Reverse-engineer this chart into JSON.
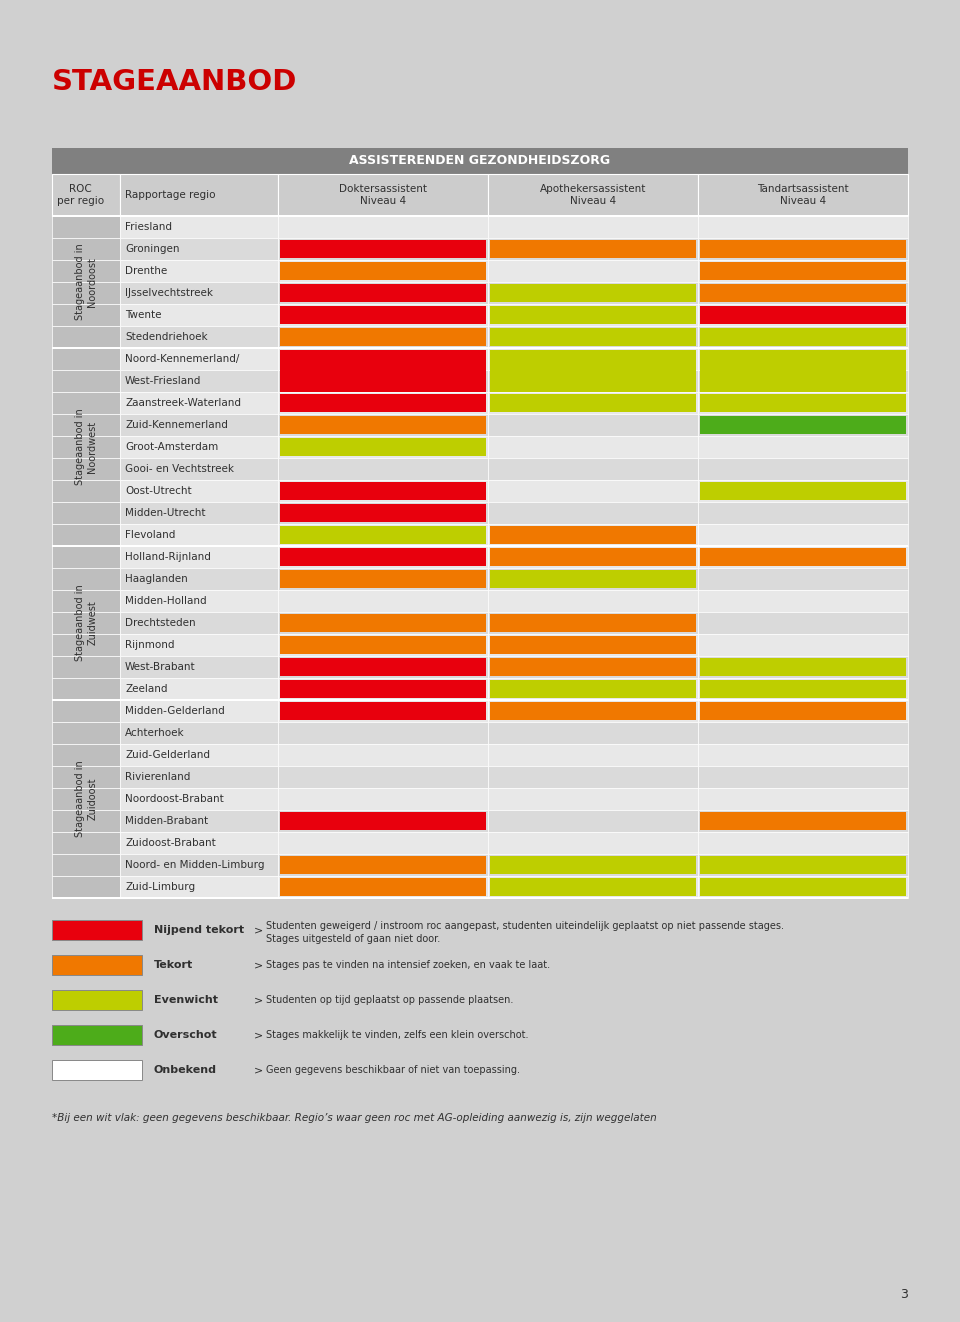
{
  "title": "STAGEAANBOD",
  "table_header": "ASSISTERENDEN GEZONDHEIDSZORG",
  "col_headers": [
    "ROC\nper regio",
    "Rapportage regio",
    "Doktersassistent\nNiveau 4",
    "Apothekersassistent\nNiveau 4",
    "Tandartsassistent\nNiveau 4"
  ],
  "groups": [
    {
      "group_label": "Stageaanbod in\nNoordoost",
      "rows": [
        {
          "region": "Friesland",
          "span": 1,
          "col1": "none",
          "col2": "none",
          "col3": "none"
        },
        {
          "region": "Groningen",
          "span": 1,
          "col1": "red",
          "col2": "orange",
          "col3": "orange"
        },
        {
          "region": "Drenthe",
          "span": 1,
          "col1": "orange",
          "col2": "none",
          "col3": "orange"
        },
        {
          "region": "IJsselvechtstreek",
          "span": 1,
          "col1": "red",
          "col2": "yellow",
          "col3": "orange"
        },
        {
          "region": "Twente",
          "span": 1,
          "col1": "red",
          "col2": "yellow",
          "col3": "red"
        },
        {
          "region": "Stedendriehoek",
          "span": 1,
          "col1": "orange",
          "col2": "yellow",
          "col3": "yellow"
        }
      ]
    },
    {
      "group_label": "Stageaanbod in\nNoordwest",
      "rows": [
        {
          "region": "Noord-Kennemerland/",
          "span": 1,
          "col1": "red",
          "col2": "yellow",
          "col3": "yellow",
          "span_start": true
        },
        {
          "region": "West-Friesland",
          "span": 1,
          "col1": "red",
          "col2": "yellow",
          "col3": "yellow",
          "span_cont": true
        },
        {
          "region": "Zaanstreek-Waterland",
          "span": 1,
          "col1": "red",
          "col2": "yellow",
          "col3": "yellow"
        },
        {
          "region": "Zuid-Kennemerland",
          "span": 1,
          "col1": "orange",
          "col2": "none",
          "col3": "green"
        },
        {
          "region": "Groot-Amsterdam",
          "span": 1,
          "col1": "yellow",
          "col2": "none",
          "col3": "none"
        },
        {
          "region": "Gooi- en Vechtstreek",
          "span": 1,
          "col1": "none",
          "col2": "none",
          "col3": "none"
        },
        {
          "region": "Oost-Utrecht",
          "span": 1,
          "col1": "red",
          "col2": "none",
          "col3": "yellow"
        },
        {
          "region": "Midden-Utrecht",
          "span": 1,
          "col1": "red",
          "col2": "none",
          "col3": "none"
        },
        {
          "region": "Flevoland",
          "span": 1,
          "col1": "yellow",
          "col2": "orange",
          "col3": "none"
        }
      ]
    },
    {
      "group_label": "Stageaanbod in\nZuidwest",
      "rows": [
        {
          "region": "Holland-Rijnland",
          "span": 1,
          "col1": "red",
          "col2": "orange",
          "col3": "orange"
        },
        {
          "region": "Haaglanden",
          "span": 1,
          "col1": "orange",
          "col2": "yellow",
          "col3": "none"
        },
        {
          "region": "Midden-Holland",
          "span": 1,
          "col1": "none",
          "col2": "none",
          "col3": "none"
        },
        {
          "region": "Drechtsteden",
          "span": 1,
          "col1": "orange",
          "col2": "orange",
          "col3": "none"
        },
        {
          "region": "Rijnmond",
          "span": 1,
          "col1": "orange",
          "col2": "orange",
          "col3": "none"
        },
        {
          "region": "West-Brabant",
          "span": 1,
          "col1": "red",
          "col2": "orange",
          "col3": "yellow"
        },
        {
          "region": "Zeeland",
          "span": 1,
          "col1": "red",
          "col2": "yellow",
          "col3": "yellow"
        }
      ]
    },
    {
      "group_label": "Stageaanbod in\nZuidoost",
      "rows": [
        {
          "region": "Midden-Gelderland",
          "span": 1,
          "col1": "red",
          "col2": "orange",
          "col3": "orange"
        },
        {
          "region": "Achterhoek",
          "span": 1,
          "col1": "none",
          "col2": "none",
          "col3": "none"
        },
        {
          "region": "Zuid-Gelderland",
          "span": 1,
          "col1": "none",
          "col2": "none",
          "col3": "none"
        },
        {
          "region": "Rivierenland",
          "span": 1,
          "col1": "none",
          "col2": "none",
          "col3": "none"
        },
        {
          "region": "Noordoost-Brabant",
          "span": 1,
          "col1": "none",
          "col2": "none",
          "col3": "none"
        },
        {
          "region": "Midden-Brabant",
          "span": 1,
          "col1": "red",
          "col2": "none",
          "col3": "orange"
        },
        {
          "region": "Zuidoost-Brabant",
          "span": 1,
          "col1": "none",
          "col2": "none",
          "col3": "none"
        },
        {
          "region": "Noord- en Midden-Limburg",
          "span": 1,
          "col1": "orange",
          "col2": "yellow",
          "col3": "yellow"
        },
        {
          "region": "Zuid-Limburg",
          "span": 1,
          "col1": "orange",
          "col2": "yellow",
          "col3": "yellow"
        }
      ]
    }
  ],
  "colors": {
    "red": "#E8000D",
    "orange": "#F07800",
    "yellow": "#BECE00",
    "green": "#4DAC1A",
    "none": "#FFFFFF",
    "page_bg": "#D0D0D0",
    "table_hdr_bg": "#808080",
    "col_hdr_bg": "#CCCCCC",
    "group_col_bg": "#BEBEBE",
    "row_alt0": "#E8E8E8",
    "row_alt1": "#DADADA",
    "border_color": "#FFFFFF",
    "text_dark": "#303030",
    "text_white": "#FFFFFF",
    "title_color": "#CC0000"
  },
  "legend": [
    {
      "color": "red",
      "label": "Nijpend tekort",
      "desc1": "Studenten geweigerd / instroom roc aangepast, studenten uiteindelijk geplaatst op niet passende stages.",
      "desc2": "Stages uitgesteld of gaan niet door."
    },
    {
      "color": "orange",
      "label": "Tekort",
      "desc1": "Stages pas te vinden na intensief zoeken, en vaak te laat.",
      "desc2": ""
    },
    {
      "color": "yellow",
      "label": "Evenwicht",
      "desc1": "Studenten op tijd geplaatst op passende plaatsen.",
      "desc2": ""
    },
    {
      "color": "green",
      "label": "Overschot",
      "desc1": "Stages makkelijk te vinden, zelfs een klein overschot.",
      "desc2": ""
    },
    {
      "color": "none",
      "label": "Onbekend",
      "desc1": "Geen gegevens beschikbaar of niet van toepassing.",
      "desc2": ""
    }
  ],
  "footnote": "*Bij een wit vlak: geen gegevens beschikbaar. Regio’s waar geen roc met AG-opleiding aanwezig is, zijn weggelaten",
  "page_number": "3"
}
